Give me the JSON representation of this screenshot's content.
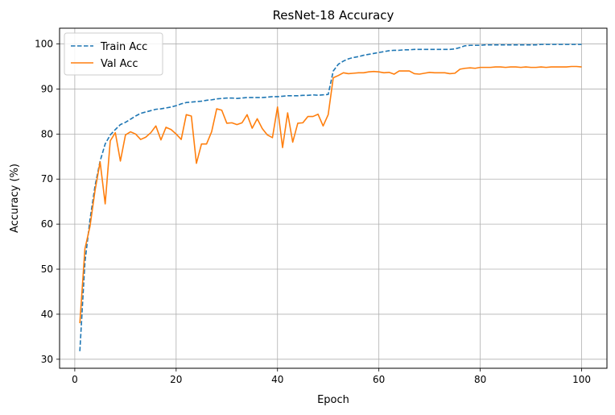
{
  "chart_data": {
    "type": "line",
    "title": "ResNet-18 Accuracy",
    "xlabel": "Epoch",
    "ylabel": "Accuracy (%)",
    "xlim": [
      -3,
      105
    ],
    "ylim": [
      28,
      103.5
    ],
    "xticks": [
      0,
      20,
      40,
      60,
      80,
      100
    ],
    "yticks": [
      30,
      40,
      50,
      60,
      70,
      80,
      90,
      100
    ],
    "grid": true,
    "legend_position": "top-left",
    "x": [
      1,
      2,
      3,
      4,
      5,
      6,
      7,
      8,
      9,
      10,
      11,
      12,
      13,
      14,
      15,
      16,
      17,
      18,
      19,
      20,
      21,
      22,
      23,
      24,
      25,
      26,
      27,
      28,
      29,
      30,
      31,
      32,
      33,
      34,
      35,
      36,
      37,
      38,
      39,
      40,
      41,
      42,
      43,
      44,
      45,
      46,
      47,
      48,
      49,
      50,
      51,
      52,
      53,
      54,
      55,
      56,
      57,
      58,
      59,
      60,
      61,
      62,
      63,
      64,
      65,
      66,
      67,
      68,
      69,
      70,
      71,
      72,
      73,
      74,
      75,
      76,
      77,
      78,
      79,
      80,
      81,
      82,
      83,
      84,
      85,
      86,
      87,
      88,
      89,
      90,
      91,
      92,
      93,
      94,
      95,
      96,
      97,
      98,
      99,
      100
    ],
    "series": [
      {
        "name": "Train Acc",
        "style": "dashed",
        "color": "#1f77b4",
        "values": [
          31.8,
          51.5,
          61.0,
          68.5,
          74.0,
          77.8,
          79.8,
          81.0,
          82.1,
          82.6,
          83.3,
          84.0,
          84.6,
          84.9,
          85.2,
          85.5,
          85.6,
          85.8,
          86.0,
          86.3,
          86.7,
          87.0,
          87.1,
          87.2,
          87.3,
          87.5,
          87.6,
          87.8,
          87.9,
          88.0,
          88.0,
          87.9,
          88.0,
          88.1,
          88.1,
          88.1,
          88.1,
          88.2,
          88.3,
          88.3,
          88.4,
          88.5,
          88.5,
          88.5,
          88.6,
          88.6,
          88.7,
          88.6,
          88.7,
          88.8,
          94.0,
          95.5,
          96.2,
          96.7,
          97.0,
          97.2,
          97.5,
          97.7,
          97.9,
          98.1,
          98.3,
          98.5,
          98.6,
          98.6,
          98.7,
          98.7,
          98.8,
          98.8,
          98.8,
          98.8,
          98.8,
          98.8,
          98.8,
          98.8,
          98.9,
          99.2,
          99.6,
          99.7,
          99.7,
          99.7,
          99.8,
          99.8,
          99.8,
          99.8,
          99.8,
          99.8,
          99.8,
          99.8,
          99.8,
          99.8,
          99.8,
          99.9,
          99.9,
          99.9,
          99.9,
          99.9,
          99.9,
          99.9,
          99.9,
          99.9
        ]
      },
      {
        "name": "Val Acc",
        "style": "solid",
        "color": "#ff7f0e",
        "values": [
          38.0,
          54.5,
          59.5,
          67.5,
          73.8,
          64.5,
          78.5,
          80.3,
          74.0,
          79.8,
          80.5,
          80.0,
          78.8,
          79.3,
          80.3,
          81.8,
          78.7,
          81.5,
          81.0,
          80.0,
          78.8,
          84.3,
          84.0,
          73.5,
          77.8,
          77.8,
          80.5,
          85.6,
          85.3,
          82.4,
          82.5,
          82.1,
          82.5,
          84.3,
          81.3,
          83.4,
          81.2,
          79.8,
          79.2,
          86.0,
          77.0,
          84.7,
          78.2,
          82.4,
          82.5,
          83.9,
          83.9,
          84.4,
          81.8,
          84.3,
          92.5,
          93.0,
          93.6,
          93.4,
          93.5,
          93.6,
          93.6,
          93.8,
          93.9,
          93.8,
          93.6,
          93.7,
          93.3,
          94.0,
          94.0,
          94.0,
          93.4,
          93.3,
          93.5,
          93.7,
          93.6,
          93.6,
          93.6,
          93.4,
          93.5,
          94.4,
          94.6,
          94.7,
          94.6,
          94.8,
          94.8,
          94.8,
          94.9,
          94.9,
          94.8,
          94.9,
          94.9,
          94.8,
          94.9,
          94.8,
          94.8,
          94.9,
          94.8,
          94.9,
          94.9,
          94.9,
          94.9,
          95.0,
          95.0,
          94.9
        ]
      }
    ]
  }
}
